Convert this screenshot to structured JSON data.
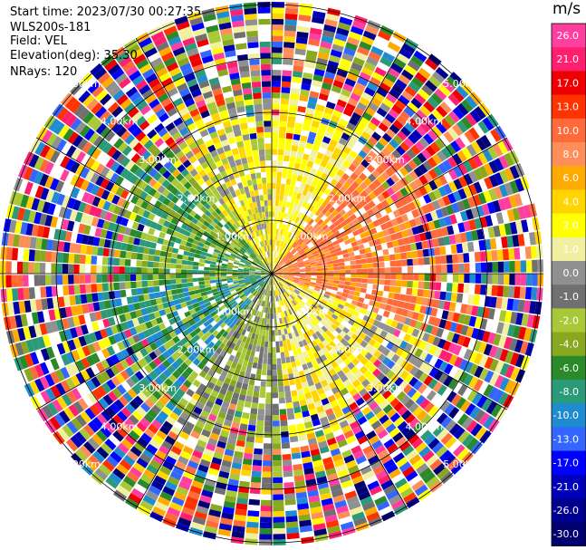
{
  "header": {
    "start_time": "Start time: 2023/07/30 00:27:35",
    "instrument": "WLS200s-181",
    "field": "Field: VEL",
    "elevation": "Elevation(deg): 35.30",
    "nrays": "NRays: 120"
  },
  "colorbar": {
    "unit": "m/s",
    "ticks": [
      "26.0",
      "21.0",
      "17.0",
      "13.0",
      "10.0",
      "8.0",
      "6.0",
      "4.0",
      "2.0",
      "1.0",
      "0.0",
      "-1.0",
      "-2.0",
      "-4.0",
      "-6.0",
      "-8.0",
      "-10.0",
      "-13.0",
      "-17.0",
      "-21.0",
      "-26.0",
      "-30.0"
    ],
    "colors": [
      "#ff3fa0",
      "#ff1f6f",
      "#ee0000",
      "#ff3300",
      "#ff6a3a",
      "#ff8f5a",
      "#ffaa00",
      "#ffd400",
      "#ffff00",
      "#f0f0a0",
      "#909090",
      "#707070",
      "#a8c838",
      "#88a820",
      "#2a8a2a",
      "#2a9a78",
      "#1f8cd2",
      "#3366ff",
      "#0000ff",
      "#0000bb",
      "#000090",
      "#000070"
    ]
  },
  "range_rings": {
    "labels": [
      "1.00km",
      "2.00km",
      "3.00km",
      "4.00km",
      "5.00km"
    ]
  },
  "chart_data": {
    "type": "heatmap",
    "field": "VEL",
    "nrays": 120,
    "range_rings_km": [
      1,
      2,
      3,
      4,
      5
    ],
    "palette_levels": [
      "26.0",
      "21.0",
      "17.0",
      "13.0",
      "10.0",
      "8.0",
      "6.0",
      "4.0",
      "2.0",
      "1.0",
      "0.0",
      "-1.0",
      "-2.0",
      "-4.0",
      "-6.0",
      "-8.0",
      "-10.0",
      "-13.0",
      "-17.0",
      "-21.0",
      "-26.0",
      "-30.0"
    ]
  }
}
